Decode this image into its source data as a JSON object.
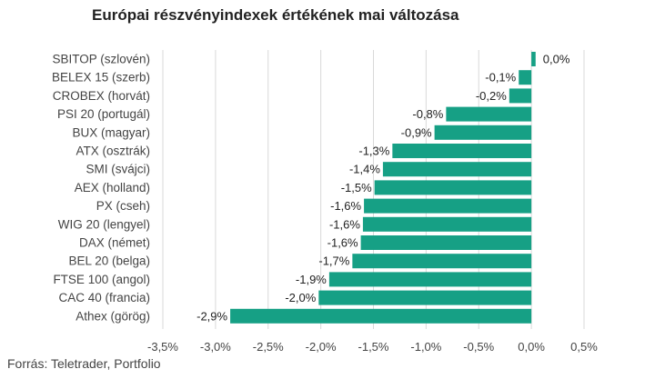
{
  "title": "Európai részvényindexek értékének mai változása",
  "source": "Forrás: Teletrader, Portfolio",
  "colors": {
    "bar": "#16a085",
    "grid": "#d9d9d9",
    "text": "#444444"
  },
  "chart_data": {
    "type": "bar",
    "orientation": "horizontal",
    "title": "Európai részvényindexek értékének mai változása",
    "xlim": [
      -3.5,
      0.5
    ],
    "x_ticks": [
      -3.5,
      -3.0,
      -2.5,
      -2.0,
      -1.5,
      -1.0,
      -0.5,
      0.0,
      0.5
    ],
    "x_tick_labels": [
      "-3,5%",
      "-3,0%",
      "-2,5%",
      "-2,0%",
      "-1,5%",
      "-1,0%",
      "-0,5%",
      "0,0%",
      "0,5%"
    ],
    "grid": "vertical",
    "categories": [
      "SBITOP (szlovén)",
      "BELEX 15 (szerb)",
      "CROBEX (horvát)",
      "PSI 20 (portugál)",
      "BUX (magyar)",
      "ATX (osztrák)",
      "SMI (svájci)",
      "AEX (holland)",
      "PX (cseh)",
      "WIG 20 (lengyel)",
      "DAX (német)",
      "BEL 20 (belga)",
      "FTSE 100 (angol)",
      "CAC 40 (francia)",
      "Athex (görög)"
    ],
    "values": [
      0.04,
      -0.12,
      -0.21,
      -0.81,
      -0.92,
      -1.32,
      -1.41,
      -1.49,
      -1.59,
      -1.6,
      -1.62,
      -1.7,
      -1.92,
      -2.02,
      -2.86
    ],
    "value_labels": [
      "0,0%",
      "-0,1%",
      "-0,2%",
      "-0,8%",
      "-0,9%",
      "-1,3%",
      "-1,4%",
      "-1,5%",
      "-1,6%",
      "-1,6%",
      "-1,6%",
      "-1,7%",
      "-1,9%",
      "-2,0%",
      "-2,9%"
    ]
  }
}
